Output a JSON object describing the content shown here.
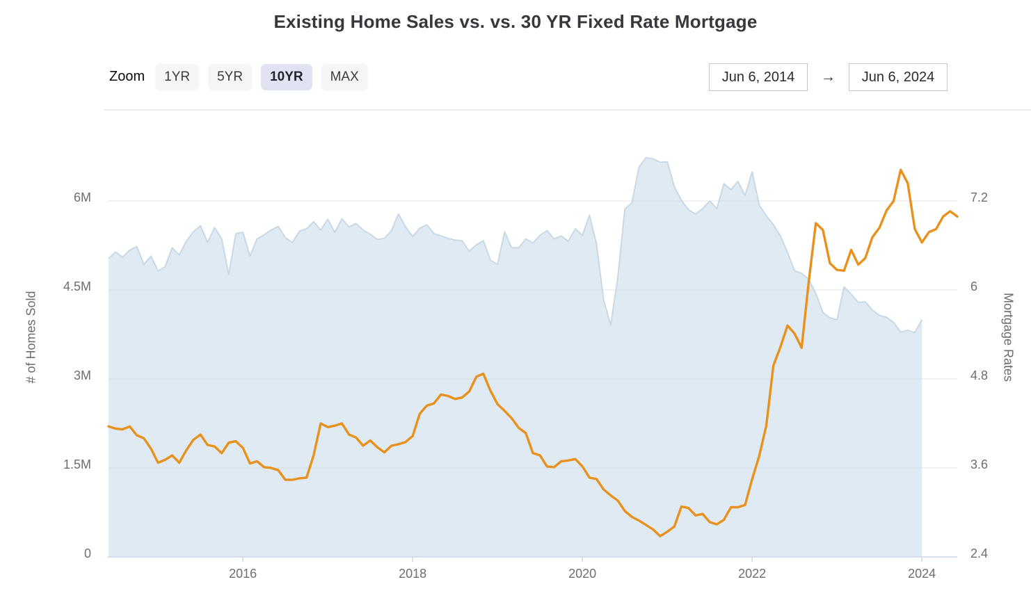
{
  "title": "Existing Home Sales vs. vs. 30 YR Fixed Rate Mortgage",
  "controls": {
    "zoom_label": "Zoom",
    "buttons": [
      {
        "label": "1YR",
        "active": false
      },
      {
        "label": "5YR",
        "active": false
      },
      {
        "label": "10YR",
        "active": true
      },
      {
        "label": "MAX",
        "active": false
      }
    ],
    "date_from": "Jun 6, 2014",
    "arrow": "→",
    "date_to": "Jun 6, 2024"
  },
  "chart_data": {
    "type": "area",
    "title": "Existing Home Sales vs. vs. 30 YR Fixed Rate Mortgage",
    "x_range": [
      "Jun 6, 2014",
      "Jun 6, 2024"
    ],
    "grid": "horizontal",
    "colors": {
      "sales_fill": "rgba(186,208,228,0.45)",
      "sales_edge": "#c9d8e5",
      "rate_line": "#e8911c",
      "gridline": "#e6e6e6",
      "axis_line": "#ccd6eb",
      "tick_text": "#6e6e6e"
    },
    "yaxis_left": {
      "title": "# of Homes Sold",
      "min": 0,
      "max": 6,
      "ticks": [
        {
          "value": 0,
          "label": "0"
        },
        {
          "value": 1.5,
          "label": "1.5M"
        },
        {
          "value": 3,
          "label": "3M"
        },
        {
          "value": 4.5,
          "label": "4.5M"
        },
        {
          "value": 6,
          "label": "6M"
        }
      ]
    },
    "yaxis_right": {
      "title": "Mortgage Rates",
      "min": 2.4,
      "max": 7.2,
      "ticks": [
        {
          "value": 2.4,
          "label": "2.4"
        },
        {
          "value": 3.6,
          "label": "3.6"
        },
        {
          "value": 4.8,
          "label": "4.8"
        },
        {
          "value": 6,
          "label": "6"
        },
        {
          "value": 7.2,
          "label": "7.2"
        }
      ]
    },
    "xaxis": {
      "ticks": [
        {
          "label": "2016",
          "month_index": 19
        },
        {
          "label": "2018",
          "month_index": 43
        },
        {
          "label": "2020",
          "month_index": 67
        },
        {
          "label": "2022",
          "month_index": 91
        },
        {
          "label": "2024",
          "month_index": 115
        }
      ]
    },
    "series": [
      {
        "name": "Existing Home Sales",
        "type": "area",
        "axis": "left",
        "unit": "millions of homes (SAAR)",
        "start": "2014-06",
        "interval": "monthly",
        "values": [
          5.03,
          5.14,
          5.05,
          5.17,
          5.23,
          4.93,
          5.07,
          4.82,
          4.89,
          5.21,
          5.09,
          5.32,
          5.48,
          5.58,
          5.3,
          5.55,
          5.36,
          4.76,
          5.45,
          5.47,
          5.07,
          5.36,
          5.43,
          5.51,
          5.57,
          5.38,
          5.3,
          5.49,
          5.53,
          5.65,
          5.51,
          5.69,
          5.47,
          5.7,
          5.56,
          5.62,
          5.51,
          5.44,
          5.35,
          5.37,
          5.5,
          5.78,
          5.56,
          5.4,
          5.54,
          5.6,
          5.45,
          5.41,
          5.37,
          5.34,
          5.33,
          5.15,
          5.26,
          5.33,
          5.0,
          4.93,
          5.48,
          5.21,
          5.21,
          5.36,
          5.29,
          5.42,
          5.5,
          5.36,
          5.41,
          5.32,
          5.53,
          5.42,
          5.76,
          5.27,
          4.33,
          3.91,
          4.7,
          5.86,
          5.97,
          6.57,
          6.73,
          6.71,
          6.65,
          6.66,
          6.24,
          6.01,
          5.85,
          5.78,
          5.87,
          6.0,
          5.87,
          6.29,
          6.19,
          6.33,
          6.09,
          6.49,
          5.93,
          5.75,
          5.6,
          5.41,
          5.13,
          4.82,
          4.78,
          4.68,
          4.44,
          4.12,
          4.03,
          4.0,
          4.55,
          4.43,
          4.29,
          4.3,
          4.16,
          4.07,
          4.04,
          3.95,
          3.79,
          3.82,
          3.78,
          4.0
        ]
      },
      {
        "name": "30 YR Fixed Rate Mortgage",
        "type": "line",
        "axis": "right",
        "unit": "percent",
        "start": "2014-06",
        "interval": "monthly",
        "values": [
          4.16,
          4.13,
          4.12,
          4.16,
          4.04,
          4.0,
          3.86,
          3.67,
          3.71,
          3.77,
          3.67,
          3.84,
          3.98,
          4.05,
          3.91,
          3.89,
          3.8,
          3.94,
          3.96,
          3.87,
          3.66,
          3.69,
          3.61,
          3.6,
          3.57,
          3.44,
          3.44,
          3.46,
          3.47,
          3.77,
          4.2,
          4.15,
          4.17,
          4.2,
          4.05,
          4.01,
          3.9,
          3.97,
          3.88,
          3.81,
          3.9,
          3.92,
          3.95,
          4.03,
          4.33,
          4.44,
          4.47,
          4.59,
          4.57,
          4.53,
          4.55,
          4.63,
          4.83,
          4.87,
          4.64,
          4.46,
          4.37,
          4.27,
          4.14,
          4.07,
          3.8,
          3.77,
          3.62,
          3.61,
          3.69,
          3.7,
          3.72,
          3.62,
          3.47,
          3.45,
          3.31,
          3.23,
          3.16,
          3.02,
          2.94,
          2.89,
          2.83,
          2.77,
          2.68,
          2.74,
          2.81,
          3.08,
          3.06,
          2.96,
          2.98,
          2.87,
          2.84,
          2.9,
          3.07,
          3.07,
          3.1,
          3.45,
          3.76,
          4.17,
          4.98,
          5.23,
          5.52,
          5.41,
          5.22,
          6.11,
          6.9,
          6.81,
          6.36,
          6.27,
          6.26,
          6.54,
          6.34,
          6.43,
          6.71,
          6.84,
          7.07,
          7.2,
          7.62,
          7.44,
          6.82,
          6.64,
          6.78,
          6.82,
          6.99,
          7.06,
          6.99
        ]
      }
    ]
  }
}
